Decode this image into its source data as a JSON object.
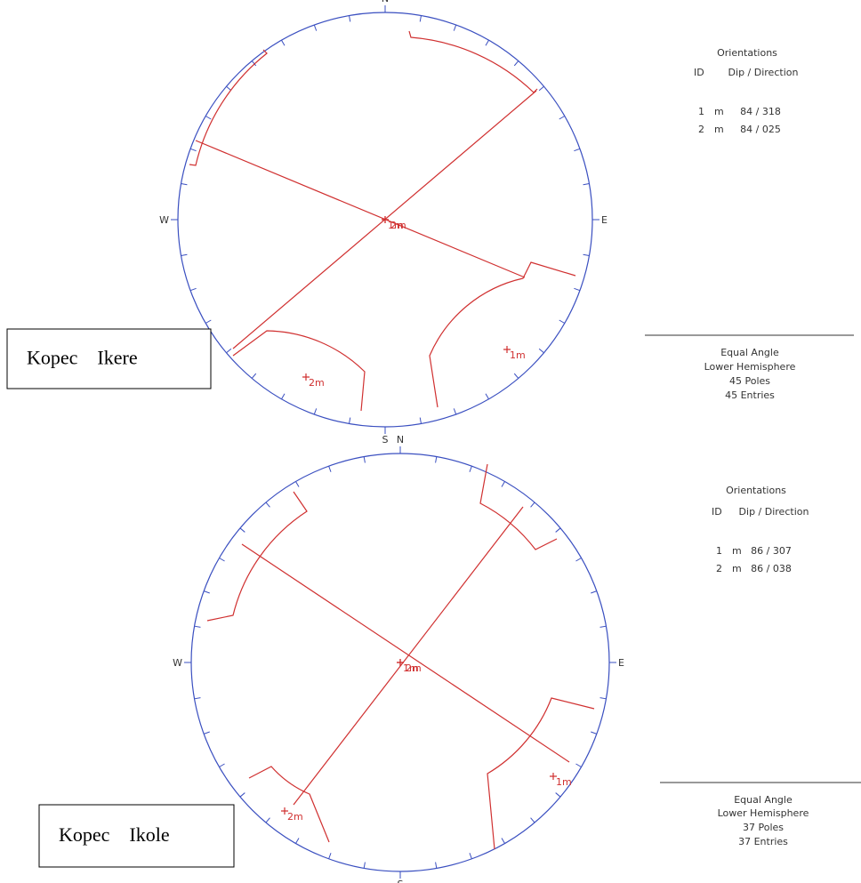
{
  "panels": [
    {
      "compass": {
        "n": "N",
        "e": "E",
        "s": "S",
        "w": "W"
      },
      "name": "Kopec    Ikere",
      "orientations": {
        "title": "Orientations",
        "headers": [
          "ID",
          "Dip / Direction"
        ],
        "rows": [
          [
            "1",
            "m",
            "84 / 318"
          ],
          [
            "2",
            "m",
            "84 / 025"
          ]
        ]
      },
      "pole_labels": [
        "1m",
        "2m"
      ],
      "summary": [
        "Equal Angle",
        "Lower Hemisphere",
        "45 Poles",
        "45 Entries"
      ]
    },
    {
      "compass": {
        "n": "N",
        "e": "E",
        "s": "S",
        "w": "W"
      },
      "name": "Kopec    Ikole",
      "orientations": {
        "title": "Orientations",
        "headers": [
          "ID",
          "Dip / Direction"
        ],
        "rows": [
          [
            "1",
            "m",
            "86 / 307"
          ],
          [
            "2",
            "m",
            "86 / 038"
          ]
        ]
      },
      "pole_labels": [
        "1m",
        "2m"
      ],
      "summary": [
        "Equal Angle",
        "Lower Hemisphere",
        "37 Poles",
        "37 Entries"
      ]
    }
  ]
}
